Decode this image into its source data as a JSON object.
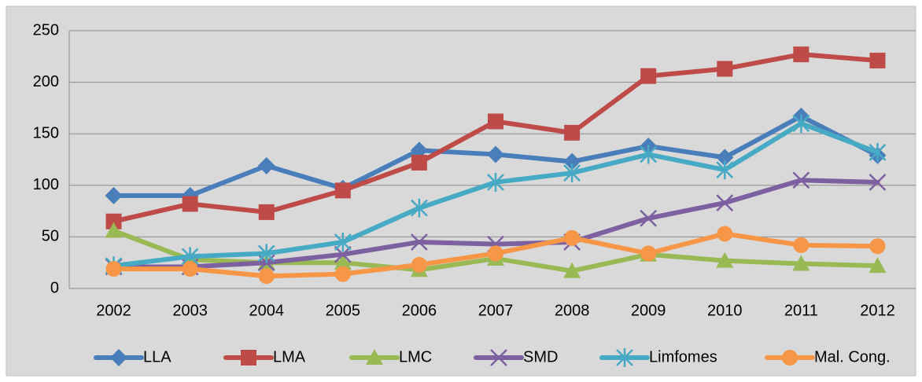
{
  "chart_data": {
    "type": "line",
    "categories": [
      "2002",
      "2003",
      "2004",
      "2005",
      "2006",
      "2007",
      "2008",
      "2009",
      "2010",
      "2011",
      "2012"
    ],
    "series": [
      {
        "name": "LLA",
        "color": "#4a7ebb",
        "marker": "diamond",
        "values": [
          90,
          90,
          119,
          97,
          134,
          130,
          123,
          138,
          127,
          167,
          129
        ]
      },
      {
        "name": "LMA",
        "color": "#be4b48",
        "marker": "square",
        "values": [
          65,
          82,
          74,
          95,
          122,
          162,
          151,
          206,
          213,
          227,
          221
        ]
      },
      {
        "name": "LMC",
        "color": "#98b954",
        "marker": "triangle",
        "values": [
          56,
          28,
          25,
          25,
          18,
          29,
          17,
          33,
          27,
          24,
          22
        ]
      },
      {
        "name": "SMD",
        "color": "#7d60a0",
        "marker": "x",
        "values": [
          21,
          21,
          25,
          33,
          45,
          43,
          45,
          68,
          83,
          105,
          103
        ]
      },
      {
        "name": "Limfomes",
        "color": "#46aac5",
        "marker": "star",
        "values": [
          22,
          31,
          34,
          45,
          78,
          103,
          112,
          130,
          115,
          160,
          132
        ]
      },
      {
        "name": "Mal. Cong.",
        "color": "#f79646",
        "marker": "circle",
        "values": [
          19,
          19,
          12,
          14,
          23,
          34,
          49,
          34,
          53,
          42,
          41
        ]
      }
    ],
    "ylim": [
      0,
      250
    ],
    "yticks": [
      0,
      50,
      100,
      150,
      200,
      250
    ],
    "grid": true,
    "legend": "bottom"
  }
}
